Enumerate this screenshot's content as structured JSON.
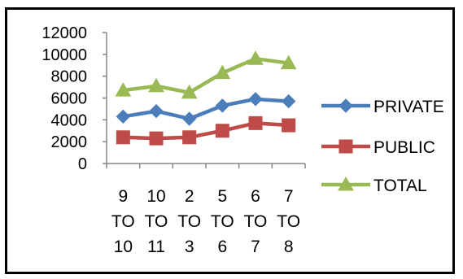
{
  "chart_data": {
    "type": "line",
    "title": "",
    "xlabel": "",
    "ylabel": "",
    "ylim": [
      0,
      12000
    ],
    "y_ticks": [
      "0",
      "2000",
      "4000",
      "6000",
      "8000",
      "10000",
      "12000"
    ],
    "categories": [
      [
        "9",
        "TO",
        "10"
      ],
      [
        "10",
        "TO",
        "11"
      ],
      [
        "2",
        "TO",
        "3"
      ],
      [
        "5",
        "TO",
        "6"
      ],
      [
        "6",
        "TO",
        "7"
      ],
      [
        "7",
        "TO",
        "8"
      ]
    ],
    "series": [
      {
        "name": "PRIVATE",
        "color": "#4a7ebb",
        "marker": "diamond",
        "values": [
          4300,
          4800,
          4100,
          5300,
          5900,
          5700
        ]
      },
      {
        "name": "PUBLIC",
        "color": "#be4b48",
        "marker": "square",
        "values": [
          2400,
          2300,
          2400,
          3000,
          3700,
          3500
        ]
      },
      {
        "name": "TOTAL",
        "color": "#98b954",
        "marker": "triangle",
        "values": [
          6700,
          7100,
          6500,
          8300,
          9600,
          9200
        ]
      }
    ],
    "grid": false,
    "legend": "right"
  }
}
